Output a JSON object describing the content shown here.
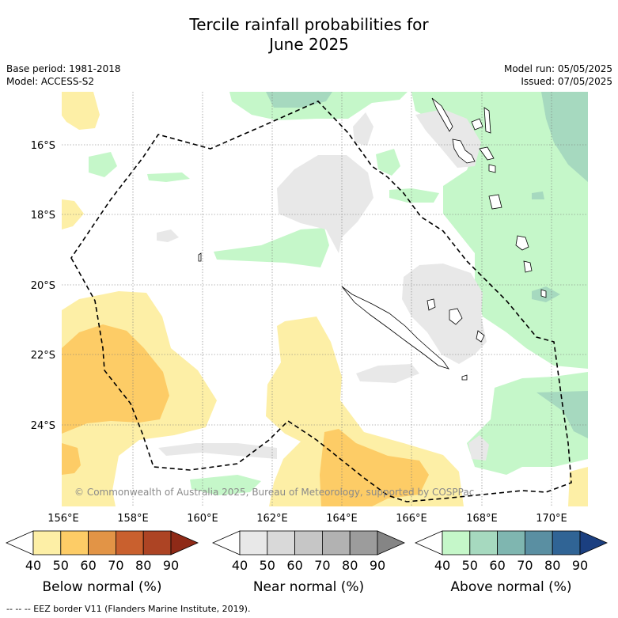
{
  "title_line1": "Tercile rainfall probabilities for",
  "title_line2": "June 2025",
  "base_period": "Base period: 1981-2018",
  "model": "Model: ACCESS-S2",
  "model_run": "Model run: 05/05/2025",
  "issued": "Issued: 07/05/2025",
  "copyright": "© Commonwealth of Australia 2025, Bureau of Meteorology, supported by COSPPac",
  "latitude_labels": [
    "16°S",
    "18°S",
    "20°S",
    "22°S",
    "24°S"
  ],
  "longitude_labels": [
    "156°E",
    "158°E",
    "160°E",
    "162°E",
    "164°E",
    "166°E",
    "168°E",
    "170°E"
  ],
  "colorbars": [
    {
      "title": "Below normal (%)",
      "ticks": [
        "40",
        "50",
        "60",
        "70",
        "80",
        "90"
      ],
      "colors": [
        "#fdefa6",
        "#fdcc66",
        "#e29446",
        "#c9602e",
        "#ad4424",
        "#8f2a17"
      ]
    },
    {
      "title": "Near normal (%)",
      "ticks": [
        "40",
        "50",
        "60",
        "70",
        "80",
        "90"
      ],
      "colors": [
        "#e8e8e8",
        "#d9d9d9",
        "#c6c6c6",
        "#b2b2b2",
        "#9c9c9c",
        "#858585"
      ]
    },
    {
      "title": "Above normal (%)",
      "ticks": [
        "40",
        "50",
        "60",
        "70",
        "80",
        "90"
      ],
      "colors": [
        "#c5f7c9",
        "#a6d9bf",
        "#7fb6b0",
        "#5a8fa2",
        "#306495",
        "#1b3f80"
      ]
    }
  ],
  "footnote": "--  --  -- EEZ border V11 (Flanders Marine Institute, 2019)."
}
